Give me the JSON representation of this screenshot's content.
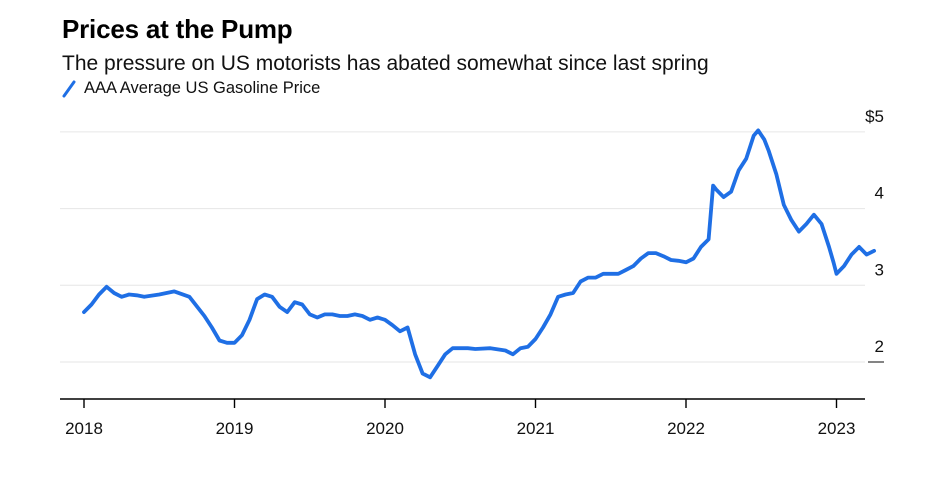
{
  "title": "Prices at the Pump",
  "subtitle": "The pressure on US motorists has abated somewhat since last spring",
  "colors": {
    "series": "#1f6fe5",
    "grid": "#e6e6e6",
    "axis": "#000000"
  },
  "chart_data": {
    "type": "line",
    "title": "Prices at the Pump",
    "subtitle": "The pressure on US motorists has abated somewhat since last spring",
    "xlabel": "",
    "ylabel": "",
    "ylim": [
      1.5,
      5.2
    ],
    "xlim": [
      2017.9,
      2023.4
    ],
    "grid": true,
    "legend_position": "top-left",
    "y_ticks": [
      {
        "value": 5,
        "label": "$5"
      },
      {
        "value": 4,
        "label": "4"
      },
      {
        "value": 3,
        "label": "3"
      },
      {
        "value": 2,
        "label": "2"
      }
    ],
    "x_ticks": [
      {
        "value": 2018,
        "label": "2018"
      },
      {
        "value": 2019,
        "label": "2019"
      },
      {
        "value": 2020,
        "label": "2020"
      },
      {
        "value": 2021,
        "label": "2021"
      },
      {
        "value": 2022,
        "label": "2022"
      },
      {
        "value": 2023,
        "label": "2023"
      }
    ],
    "series": [
      {
        "name": "AAA Average US Gasoline Price",
        "color": "#1f6fe5",
        "x": [
          2018.0,
          2018.05,
          2018.1,
          2018.15,
          2018.2,
          2018.25,
          2018.3,
          2018.35,
          2018.4,
          2018.5,
          2018.6,
          2018.7,
          2018.8,
          2018.85,
          2018.9,
          2018.95,
          2019.0,
          2019.05,
          2019.1,
          2019.15,
          2019.2,
          2019.25,
          2019.3,
          2019.35,
          2019.4,
          2019.45,
          2019.5,
          2019.55,
          2019.6,
          2019.65,
          2019.7,
          2019.75,
          2019.8,
          2019.85,
          2019.9,
          2019.95,
          2020.0,
          2020.05,
          2020.1,
          2020.15,
          2020.2,
          2020.25,
          2020.3,
          2020.35,
          2020.4,
          2020.45,
          2020.5,
          2020.55,
          2020.6,
          2020.7,
          2020.8,
          2020.85,
          2020.9,
          2020.95,
          2021.0,
          2021.05,
          2021.1,
          2021.15,
          2021.2,
          2021.25,
          2021.3,
          2021.35,
          2021.4,
          2021.45,
          2021.5,
          2021.55,
          2021.6,
          2021.65,
          2021.7,
          2021.75,
          2021.8,
          2021.85,
          2021.9,
          2021.95,
          2022.0,
          2022.05,
          2022.1,
          2022.15,
          2022.18,
          2022.2,
          2022.25,
          2022.3,
          2022.35,
          2022.4,
          2022.45,
          2022.48,
          2022.52,
          2022.55,
          2022.6,
          2022.65,
          2022.7,
          2022.75,
          2022.8,
          2022.85,
          2022.9,
          2022.95,
          2022.98,
          2023.0,
          2023.05,
          2023.1,
          2023.15,
          2023.2,
          2023.25
        ],
        "values": [
          2.65,
          2.75,
          2.88,
          2.98,
          2.9,
          2.85,
          2.88,
          2.87,
          2.85,
          2.88,
          2.92,
          2.85,
          2.6,
          2.45,
          2.28,
          2.25,
          2.25,
          2.35,
          2.55,
          2.82,
          2.88,
          2.85,
          2.72,
          2.65,
          2.78,
          2.75,
          2.62,
          2.58,
          2.62,
          2.62,
          2.6,
          2.6,
          2.62,
          2.6,
          2.55,
          2.58,
          2.55,
          2.48,
          2.4,
          2.45,
          2.1,
          1.85,
          1.8,
          1.95,
          2.1,
          2.18,
          2.18,
          2.18,
          2.17,
          2.18,
          2.15,
          2.1,
          2.18,
          2.2,
          2.3,
          2.45,
          2.62,
          2.85,
          2.88,
          2.9,
          3.05,
          3.1,
          3.1,
          3.15,
          3.15,
          3.15,
          3.2,
          3.25,
          3.35,
          3.42,
          3.42,
          3.38,
          3.33,
          3.32,
          3.3,
          3.35,
          3.5,
          3.6,
          4.3,
          4.25,
          4.15,
          4.22,
          4.5,
          4.65,
          4.95,
          5.02,
          4.9,
          4.75,
          4.45,
          4.05,
          3.85,
          3.7,
          3.8,
          3.92,
          3.8,
          3.5,
          3.3,
          3.15,
          3.25,
          3.4,
          3.5,
          3.4,
          3.45
        ]
      }
    ]
  }
}
